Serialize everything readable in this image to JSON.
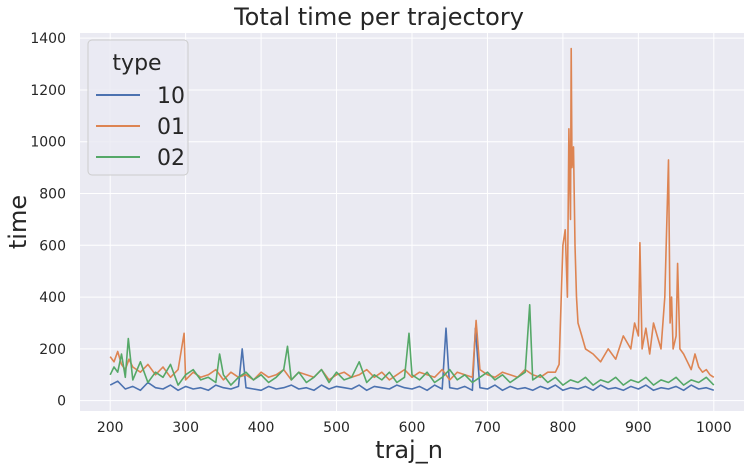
{
  "chart_data": {
    "type": "line",
    "title": "Total time per trajectory",
    "xlabel": "traj_n",
    "ylabel": "time",
    "xlim": [
      160,
      1040
    ],
    "ylim": [
      -40,
      1420
    ],
    "xticks": [
      200,
      300,
      400,
      500,
      600,
      700,
      800,
      900,
      1000
    ],
    "yticks": [
      0,
      200,
      400,
      600,
      800,
      1000,
      1200,
      1400
    ],
    "grid": true,
    "legend": {
      "title": "type",
      "placement": "top-left"
    },
    "colors": {
      "background": "#eaeaf2",
      "grid": "#ffffff",
      "text": "#262626"
    },
    "series": [
      {
        "name": "10",
        "color": "#4c72b0",
        "x": [
          200,
          210,
          220,
          230,
          240,
          250,
          260,
          270,
          280,
          290,
          300,
          310,
          320,
          330,
          340,
          350,
          360,
          370,
          375,
          380,
          390,
          400,
          410,
          420,
          430,
          440,
          450,
          460,
          470,
          480,
          490,
          500,
          510,
          520,
          530,
          540,
          550,
          560,
          570,
          580,
          590,
          600,
          610,
          620,
          630,
          640,
          645,
          650,
          660,
          670,
          680,
          684,
          690,
          700,
          710,
          720,
          730,
          740,
          750,
          760,
          770,
          780,
          790,
          800,
          810,
          820,
          830,
          840,
          850,
          860,
          870,
          880,
          890,
          900,
          910,
          920,
          930,
          940,
          950,
          960,
          970,
          980,
          990,
          1000
        ],
        "y": [
          60,
          75,
          45,
          55,
          40,
          70,
          50,
          45,
          60,
          40,
          55,
          45,
          50,
          40,
          60,
          50,
          45,
          55,
          200,
          50,
          45,
          40,
          55,
          45,
          50,
          60,
          45,
          50,
          40,
          60,
          45,
          55,
          50,
          45,
          60,
          40,
          55,
          50,
          45,
          60,
          50,
          45,
          55,
          40,
          60,
          45,
          280,
          50,
          45,
          55,
          40,
          280,
          50,
          45,
          60,
          40,
          55,
          45,
          50,
          40,
          55,
          45,
          60,
          40,
          50,
          45,
          55,
          40,
          60,
          45,
          50,
          40,
          55,
          45,
          60,
          40,
          50,
          45,
          55,
          40,
          60,
          45,
          50,
          40
        ]
      },
      {
        "name": "01",
        "color": "#dd8452",
        "x": [
          200,
          205,
          210,
          215,
          220,
          225,
          230,
          240,
          250,
          260,
          270,
          280,
          290,
          298,
          300,
          310,
          320,
          330,
          340,
          350,
          360,
          370,
          380,
          390,
          400,
          410,
          420,
          430,
          440,
          450,
          460,
          470,
          480,
          490,
          500,
          510,
          520,
          530,
          540,
          550,
          560,
          570,
          580,
          590,
          600,
          610,
          620,
          630,
          640,
          650,
          660,
          670,
          680,
          685,
          690,
          700,
          710,
          720,
          730,
          740,
          750,
          760,
          770,
          780,
          790,
          795,
          800,
          803,
          806,
          808,
          810,
          811,
          812,
          814,
          816,
          818,
          820,
          825,
          830,
          840,
          850,
          860,
          870,
          880,
          890,
          895,
          900,
          902,
          905,
          910,
          915,
          920,
          925,
          930,
          935,
          940,
          942,
          944,
          946,
          950,
          952,
          955,
          960,
          965,
          970,
          975,
          980,
          985,
          990,
          995,
          1000
        ],
        "y": [
          170,
          150,
          190,
          140,
          120,
          160,
          130,
          110,
          140,
          100,
          130,
          90,
          120,
          260,
          80,
          110,
          90,
          100,
          120,
          80,
          110,
          90,
          100,
          80,
          110,
          90,
          100,
          120,
          80,
          110,
          100,
          90,
          120,
          80,
          100,
          110,
          90,
          100,
          120,
          90,
          110,
          80,
          100,
          120,
          90,
          110,
          100,
          90,
          120,
          80,
          110,
          100,
          90,
          310,
          120,
          100,
          90,
          110,
          100,
          90,
          120,
          100,
          90,
          110,
          110,
          140,
          600,
          660,
          400,
          1050,
          700,
          1360,
          900,
          980,
          600,
          400,
          300,
          250,
          200,
          180,
          150,
          200,
          160,
          250,
          200,
          300,
          250,
          610,
          200,
          280,
          180,
          300,
          250,
          200,
          400,
          930,
          300,
          400,
          200,
          250,
          530,
          200,
          180,
          150,
          120,
          180,
          130,
          110,
          120,
          100,
          90
        ]
      },
      {
        "name": "02",
        "color": "#55a868",
        "x": [
          200,
          205,
          210,
          215,
          220,
          224,
          230,
          240,
          250,
          260,
          270,
          280,
          290,
          300,
          310,
          320,
          330,
          340,
          345,
          350,
          360,
          370,
          380,
          390,
          400,
          410,
          420,
          430,
          435,
          440,
          450,
          460,
          470,
          480,
          490,
          500,
          510,
          520,
          530,
          540,
          550,
          560,
          570,
          580,
          590,
          596,
          600,
          610,
          620,
          630,
          640,
          650,
          660,
          670,
          680,
          690,
          700,
          710,
          720,
          730,
          740,
          750,
          756,
          760,
          770,
          780,
          790,
          800,
          810,
          820,
          830,
          840,
          850,
          860,
          870,
          880,
          890,
          900,
          910,
          920,
          930,
          940,
          950,
          960,
          970,
          980,
          990,
          1000
        ],
        "y": [
          100,
          130,
          110,
          180,
          90,
          240,
          80,
          150,
          70,
          110,
          90,
          140,
          60,
          100,
          120,
          80,
          90,
          70,
          180,
          100,
          60,
          90,
          110,
          80,
          100,
          70,
          90,
          120,
          210,
          80,
          110,
          70,
          90,
          120,
          70,
          110,
          80,
          90,
          150,
          70,
          100,
          80,
          110,
          70,
          90,
          260,
          100,
          80,
          110,
          70,
          90,
          120,
          80,
          100,
          70,
          90,
          110,
          80,
          100,
          70,
          90,
          110,
          370,
          80,
          100,
          70,
          90,
          60,
          80,
          70,
          90,
          60,
          80,
          70,
          90,
          60,
          80,
          70,
          90,
          60,
          80,
          70,
          90,
          60,
          80,
          70,
          90,
          60
        ]
      }
    ]
  }
}
